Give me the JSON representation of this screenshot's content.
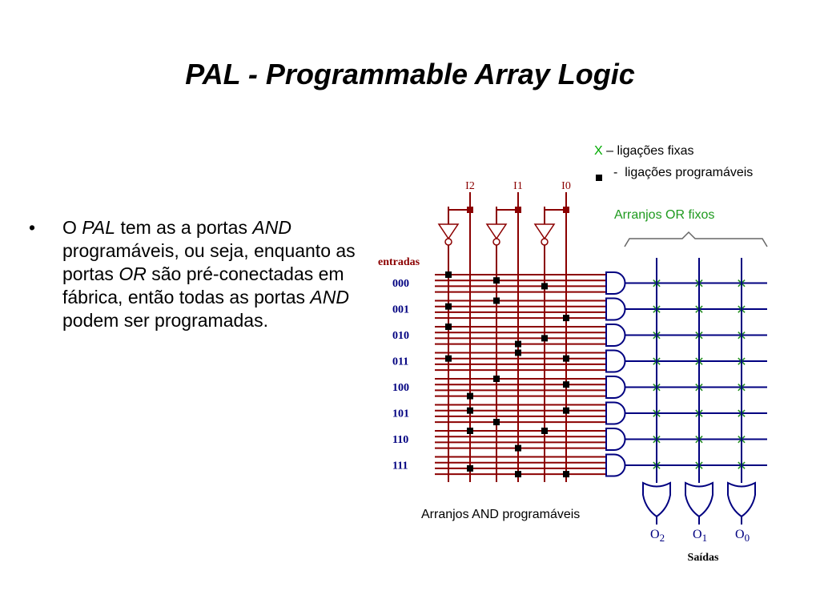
{
  "title": "PAL - Programmable Array Logic",
  "bullet": {
    "marker": "•",
    "parts": [
      {
        "t": "O ",
        "i": false
      },
      {
        "t": "PAL",
        "i": true
      },
      {
        "t": " tem as a portas ",
        "i": false
      },
      {
        "t": "AND",
        "i": true
      },
      {
        "t": " programáveis, ou seja, enquanto as portas ",
        "i": false
      },
      {
        "t": "OR",
        "i": true
      },
      {
        "t": " são pré-conectadas em fábrica, então todas as portas ",
        "i": false
      },
      {
        "t": "AND",
        "i": true
      },
      {
        "t": " podem ser programadas.",
        "i": false
      }
    ]
  },
  "legend": {
    "x_symbol": "X",
    "fixed_text": " – ligações fixas",
    "prog_dash": "-",
    "prog_text": "ligações programáveis"
  },
  "labels": {
    "or_arrays": "Arranjos OR fixos",
    "and_arrays": "Arranjos AND programáveis",
    "entradas": "entradas",
    "saidas": "Saídas"
  },
  "inputs": [
    "I2",
    "I1",
    "I0"
  ],
  "outputs": [
    {
      "base": "O",
      "sub": "2"
    },
    {
      "base": "O",
      "sub": "1"
    },
    {
      "base": "O",
      "sub": "0"
    }
  ],
  "rows": [
    "000",
    "001",
    "010",
    "011",
    "100",
    "101",
    "110",
    "111"
  ],
  "connections": [
    [
      [
        0,
        0
      ],
      [
        2,
        1
      ],
      [
        4,
        2
      ]
    ],
    [
      [
        0,
        1
      ],
      [
        2,
        0
      ],
      [
        5,
        3
      ]
    ],
    [
      [
        0,
        0
      ],
      [
        3,
        3
      ],
      [
        4,
        2
      ]
    ],
    [
      [
        0,
        1
      ],
      [
        3,
        4
      ],
      [
        5,
        5
      ]
    ],
    [
      [
        1,
        3
      ],
      [
        2,
        0
      ],
      [
        5,
        5
      ]
    ],
    [
      [
        1,
        1
      ],
      [
        2,
        3
      ],
      [
        5,
        5
      ]
    ],
    [
      [
        1,
        0
      ],
      [
        3,
        3
      ],
      [
        4,
        4
      ]
    ],
    [
      [
        1,
        2
      ],
      [
        3,
        3
      ],
      [
        5,
        7
      ]
    ]
  ],
  "colors": {
    "line_red": "#8b0000",
    "line_blue": "#000080",
    "green": "#1e9a1e"
  }
}
